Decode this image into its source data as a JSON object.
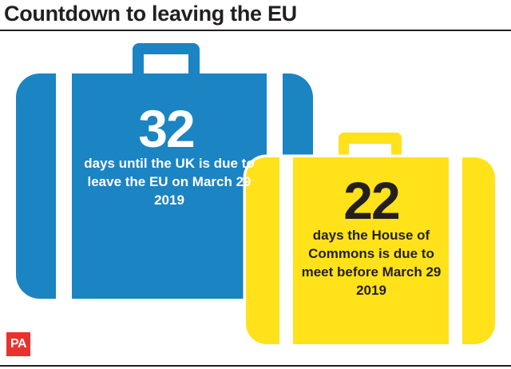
{
  "title": "Countdown to leaving the EU",
  "blue_case": {
    "number": "32",
    "caption": "days until the UK is due to leave the EU on March 29 2019",
    "color": "#1b84c3"
  },
  "yellow_case": {
    "number": "22",
    "caption": "days the House of Commons is due to meet before March 29 2019",
    "color": "#ffe21a"
  },
  "logo": {
    "text": "PA",
    "color": "#e8322d"
  }
}
